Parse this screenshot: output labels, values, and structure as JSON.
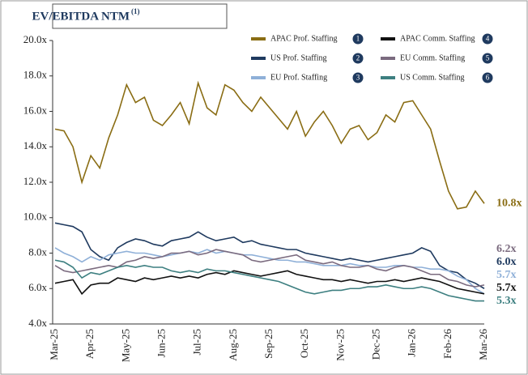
{
  "chart_data": {
    "type": "line",
    "title": "EV/EBITDA NTM",
    "title_note": "(1)",
    "categories": [
      "Mar-25",
      null,
      null,
      null,
      "Apr-25",
      null,
      null,
      null,
      "May-25",
      null,
      null,
      null,
      "Jun-25",
      null,
      null,
      null,
      "Jul-25",
      null,
      null,
      null,
      "Aug-25",
      null,
      null,
      null,
      "Sep-25",
      null,
      null,
      null,
      "Oct-25",
      null,
      null,
      null,
      "Nov-25",
      null,
      null,
      null,
      "Dec-25",
      null,
      null,
      null,
      "Jan-26",
      null,
      null,
      null,
      "Feb-26",
      null,
      null,
      null,
      "Mar-26"
    ],
    "ylim": [
      4,
      20
    ],
    "yticks": [
      {
        "value": 4,
        "label": "4.0x"
      },
      {
        "value": 6,
        "label": "6.0x"
      },
      {
        "value": 8,
        "label": "8.0x"
      },
      {
        "value": 10,
        "label": "10.0x"
      },
      {
        "value": 12,
        "label": "12.0x"
      },
      {
        "value": 14,
        "label": "14.0x"
      },
      {
        "value": 16,
        "label": "16.0x"
      },
      {
        "value": 18,
        "label": "18.0x"
      },
      {
        "value": 20,
        "label": "20.0x"
      }
    ],
    "series": [
      {
        "name": "APAC Prof. Staffing",
        "marker": "1",
        "color": "#8a6d14",
        "end_label": "10.8x",
        "values": [
          15.0,
          14.9,
          14.0,
          12.0,
          13.5,
          12.8,
          14.5,
          15.8,
          17.5,
          16.5,
          16.8,
          15.5,
          15.2,
          15.8,
          16.5,
          15.3,
          17.6,
          16.2,
          15.8,
          17.5,
          17.2,
          16.5,
          16.0,
          16.8,
          16.2,
          15.6,
          15.0,
          16.0,
          14.6,
          15.4,
          16.0,
          15.2,
          14.2,
          15.0,
          15.2,
          14.4,
          14.8,
          15.8,
          15.4,
          16.5,
          16.6,
          15.8,
          15.0,
          13.2,
          11.5,
          10.5,
          10.6,
          11.5,
          10.8
        ]
      },
      {
        "name": "US Prof. Staffing",
        "marker": "2",
        "color": "#1f3a5f",
        "end_label": "6.0x",
        "values": [
          9.7,
          9.6,
          9.5,
          9.2,
          8.2,
          7.8,
          7.6,
          8.3,
          8.6,
          8.8,
          8.7,
          8.5,
          8.4,
          8.7,
          8.8,
          8.9,
          9.2,
          8.9,
          8.7,
          8.8,
          8.9,
          8.6,
          8.7,
          8.5,
          8.4,
          8.3,
          8.2,
          8.2,
          8.0,
          7.9,
          7.8,
          7.7,
          7.6,
          7.7,
          7.6,
          7.5,
          7.6,
          7.7,
          7.8,
          7.9,
          8.0,
          8.3,
          8.1,
          7.3,
          7.0,
          6.9,
          6.5,
          6.3,
          6.0
        ]
      },
      {
        "name": "EU Prof. Staffing",
        "marker": "3",
        "color": "#8fb0d8",
        "end_label": "5.7x",
        "values": [
          8.3,
          8.0,
          7.8,
          7.5,
          7.8,
          7.6,
          7.9,
          8.0,
          8.1,
          8.0,
          8.0,
          7.9,
          7.8,
          7.9,
          8.0,
          8.1,
          8.0,
          8.2,
          8.0,
          8.1,
          8.0,
          7.9,
          7.9,
          7.8,
          7.7,
          7.6,
          7.6,
          7.5,
          7.5,
          7.4,
          7.3,
          7.3,
          7.3,
          7.4,
          7.3,
          7.3,
          7.2,
          7.2,
          7.3,
          7.3,
          7.2,
          7.2,
          7.1,
          7.1,
          7.0,
          6.7,
          6.5,
          6.0,
          5.7
        ]
      },
      {
        "name": "APAC Comm. Staffing",
        "marker": "4",
        "color": "#111111",
        "end_label": "5.7x",
        "values": [
          6.3,
          6.4,
          6.5,
          5.7,
          6.2,
          6.3,
          6.3,
          6.6,
          6.5,
          6.4,
          6.6,
          6.5,
          6.6,
          6.7,
          6.6,
          6.7,
          6.6,
          6.8,
          6.9,
          6.8,
          7.0,
          6.9,
          6.8,
          6.7,
          6.8,
          6.9,
          7.0,
          6.8,
          6.7,
          6.6,
          6.5,
          6.5,
          6.4,
          6.5,
          6.4,
          6.3,
          6.4,
          6.4,
          6.5,
          6.4,
          6.5,
          6.6,
          6.5,
          6.4,
          6.2,
          6.0,
          5.9,
          5.8,
          5.7
        ]
      },
      {
        "name": "EU Comm. Staffing",
        "marker": "5",
        "color": "#7b6b7f",
        "end_label": "6.2x",
        "values": [
          7.3,
          7.0,
          6.9,
          7.0,
          7.1,
          7.2,
          7.3,
          7.2,
          7.5,
          7.6,
          7.8,
          7.7,
          7.8,
          8.0,
          8.0,
          8.1,
          7.9,
          8.0,
          8.2,
          8.1,
          8.0,
          7.9,
          7.6,
          7.5,
          7.6,
          7.7,
          7.8,
          7.9,
          7.6,
          7.5,
          7.4,
          7.5,
          7.3,
          7.2,
          7.2,
          7.3,
          7.1,
          7.0,
          7.2,
          7.3,
          7.2,
          7.0,
          6.8,
          6.8,
          6.5,
          6.4,
          6.2,
          6.1,
          6.2
        ]
      },
      {
        "name": "US Comm. Staffing",
        "marker": "6",
        "color": "#3d7f80",
        "end_label": "5.3x",
        "values": [
          7.6,
          7.5,
          7.2,
          6.6,
          6.9,
          6.8,
          7.0,
          7.2,
          7.3,
          7.2,
          7.3,
          7.2,
          7.2,
          7.0,
          6.9,
          7.0,
          6.9,
          7.1,
          7.0,
          7.0,
          6.9,
          6.8,
          6.7,
          6.6,
          6.5,
          6.4,
          6.2,
          6.0,
          5.8,
          5.7,
          5.8,
          5.9,
          5.9,
          6.0,
          6.0,
          6.1,
          6.1,
          6.2,
          6.1,
          6.0,
          6.0,
          6.1,
          6.0,
          5.8,
          5.6,
          5.5,
          5.4,
          5.3,
          5.3
        ]
      }
    ]
  }
}
